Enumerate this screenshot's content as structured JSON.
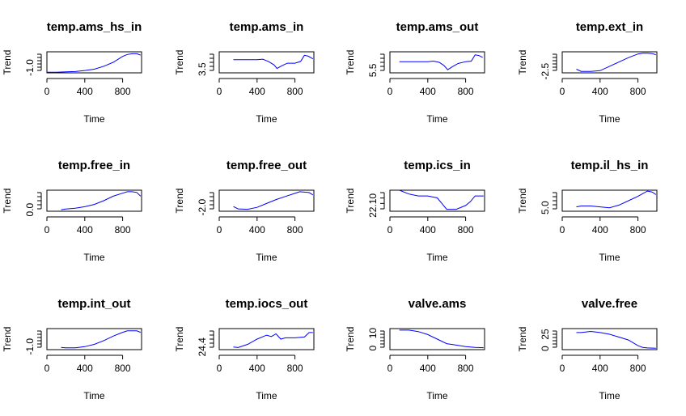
{
  "chart_data": [
    {
      "type": "line",
      "title": "temp.ams_hs_in",
      "xlabel": "Time",
      "ylabel": "Trend",
      "xlim": [
        0,
        1000
      ],
      "xticks": [
        0,
        400,
        800
      ],
      "ylim": [
        -1.4,
        0.2
      ],
      "yticks": [
        -1.0
      ],
      "ytick_labels": [
        "-1.0"
      ],
      "minor_ytick_count": 6,
      "x": [
        0,
        100,
        200,
        300,
        400,
        500,
        600,
        700,
        800,
        850,
        900,
        950,
        990
      ],
      "y": [
        -1.35,
        -1.35,
        -1.32,
        -1.3,
        -1.22,
        -1.12,
        -0.9,
        -0.6,
        -0.15,
        0.0,
        0.05,
        0.05,
        -0.05
      ]
    },
    {
      "type": "line",
      "title": "temp.ams_in",
      "xlabel": "Time",
      "ylabel": "Trend",
      "xlim": [
        0,
        1000
      ],
      "xticks": [
        0,
        400,
        800
      ],
      "ylim": [
        3.3,
        4.5
      ],
      "yticks": [
        3.5
      ],
      "ytick_labels": [
        "3.5"
      ],
      "minor_ytick_count": 5,
      "x": [
        150,
        250,
        400,
        460,
        520,
        580,
        610,
        660,
        720,
        800,
        860,
        900,
        940,
        990
      ],
      "y": [
        4.05,
        4.05,
        4.05,
        4.08,
        3.95,
        3.75,
        3.55,
        3.7,
        3.85,
        3.85,
        3.95,
        4.3,
        4.25,
        4.1
      ]
    },
    {
      "type": "line",
      "title": "temp.ams_out",
      "xlabel": "Time",
      "ylabel": "Trend",
      "xlim": [
        0,
        1000
      ],
      "xticks": [
        0,
        400,
        800
      ],
      "ylim": [
        5.3,
        7.0
      ],
      "yticks": [
        5.5
      ],
      "ytick_labels": [
        "5.5"
      ],
      "minor_ytick_count": 5,
      "x": [
        100,
        250,
        400,
        460,
        520,
        570,
        610,
        660,
        720,
        800,
        860,
        900,
        940,
        980
      ],
      "y": [
        6.2,
        6.2,
        6.2,
        6.25,
        6.15,
        5.9,
        5.55,
        5.8,
        6.05,
        6.2,
        6.25,
        6.75,
        6.7,
        6.55
      ]
    },
    {
      "type": "line",
      "title": "temp.ext_in",
      "xlabel": "Time",
      "ylabel": "Trend",
      "xlim": [
        0,
        1000
      ],
      "xticks": [
        0,
        400,
        800
      ],
      "ylim": [
        -2.7,
        0.2
      ],
      "yticks": [
        -2.5
      ],
      "ytick_labels": [
        "-2.5"
      ],
      "minor_ytick_count": 6,
      "x": [
        150,
        200,
        300,
        400,
        500,
        600,
        700,
        800,
        850,
        900,
        950,
        990
      ],
      "y": [
        -2.2,
        -2.5,
        -2.5,
        -2.4,
        -1.8,
        -1.2,
        -0.6,
        -0.1,
        0.0,
        0.0,
        -0.05,
        -0.2
      ]
    },
    {
      "type": "line",
      "title": "temp.free_in",
      "xlabel": "Time",
      "ylabel": "Trend",
      "xlim": [
        0,
        1000
      ],
      "xticks": [
        0,
        400,
        800
      ],
      "ylim": [
        -0.2,
        2.6
      ],
      "yticks": [
        0.0
      ],
      "ytick_labels": [
        "0.0"
      ],
      "minor_ytick_count": 5,
      "x": [
        150,
        200,
        300,
        400,
        500,
        600,
        700,
        800,
        850,
        900,
        950,
        990
      ],
      "y": [
        0.0,
        0.1,
        0.2,
        0.4,
        0.7,
        1.2,
        1.8,
        2.2,
        2.4,
        2.4,
        2.3,
        1.8
      ]
    },
    {
      "type": "line",
      "title": "temp.free_out",
      "xlabel": "Time",
      "ylabel": "Trend",
      "xlim": [
        0,
        1000
      ],
      "xticks": [
        0,
        400,
        800
      ],
      "ylim": [
        -2.5,
        0.2
      ],
      "yticks": [
        -2.0
      ],
      "ytick_labels": [
        "-2.0"
      ],
      "minor_ytick_count": 5,
      "x": [
        150,
        200,
        300,
        400,
        500,
        600,
        700,
        800,
        850,
        900,
        950,
        990
      ],
      "y": [
        -1.9,
        -2.2,
        -2.25,
        -2.0,
        -1.5,
        -1.0,
        -0.6,
        -0.2,
        0.0,
        -0.05,
        -0.1,
        -0.4
      ]
    },
    {
      "type": "line",
      "title": "temp.ics_in",
      "xlabel": "Time",
      "ylabel": "Trend",
      "xlim": [
        0,
        1000
      ],
      "xticks": [
        0,
        400,
        800
      ],
      "ylim": [
        22.07,
        22.18
      ],
      "yticks": [
        22.1
      ],
      "ytick_labels": [
        "22.10"
      ],
      "minor_ytick_count": 4,
      "x": [
        100,
        200,
        300,
        400,
        500,
        600,
        700,
        800,
        850,
        900,
        950,
        990
      ],
      "y": [
        22.18,
        22.16,
        22.15,
        22.15,
        22.14,
        22.08,
        22.08,
        22.1,
        22.12,
        22.15,
        22.15,
        22.15
      ]
    },
    {
      "type": "line",
      "title": "temp.il_hs_in",
      "xlabel": "Time",
      "ylabel": "Trend",
      "xlim": [
        0,
        1000
      ],
      "xticks": [
        0,
        400,
        800
      ],
      "ylim": [
        4.6,
        7.0
      ],
      "yticks": [
        5.0
      ],
      "ytick_labels": [
        "5.0"
      ],
      "minor_ytick_count": 5,
      "x": [
        150,
        200,
        300,
        400,
        500,
        600,
        700,
        800,
        850,
        900,
        950,
        990
      ],
      "y": [
        5.1,
        5.2,
        5.2,
        5.1,
        5.0,
        5.3,
        5.8,
        6.3,
        6.6,
        6.9,
        6.8,
        6.5
      ]
    },
    {
      "type": "line",
      "title": "temp.int_out",
      "xlabel": "Time",
      "ylabel": "Trend",
      "xlim": [
        0,
        1000
      ],
      "xticks": [
        0,
        400,
        800
      ],
      "ylim": [
        -1.2,
        0.2
      ],
      "yticks": [
        -1.0
      ],
      "ytick_labels": [
        "-1.0"
      ],
      "minor_ytick_count": 6,
      "x": [
        150,
        200,
        300,
        400,
        500,
        600,
        700,
        800,
        850,
        900,
        950,
        990
      ],
      "y": [
        -1.05,
        -1.08,
        -1.08,
        -1.0,
        -0.85,
        -0.6,
        -0.3,
        -0.05,
        0.05,
        0.05,
        0.05,
        -0.05
      ]
    },
    {
      "type": "line",
      "title": "temp.iocs_out",
      "xlabel": "Time",
      "ylabel": "Trend",
      "xlim": [
        0,
        1000
      ],
      "xticks": [
        0,
        400,
        800
      ],
      "ylim": [
        24.3,
        25.1
      ],
      "yticks": [
        24.4
      ],
      "ytick_labels": [
        "24.4"
      ],
      "minor_ytick_count": 5,
      "x": [
        150,
        200,
        300,
        400,
        500,
        550,
        600,
        650,
        700,
        800,
        900,
        950,
        990
      ],
      "y": [
        24.4,
        24.38,
        24.5,
        24.7,
        24.85,
        24.8,
        24.9,
        24.7,
        24.75,
        24.75,
        24.78,
        24.95,
        24.95
      ]
    },
    {
      "type": "line",
      "title": "valve.ams",
      "xlabel": "Time",
      "ylabel": "Trend",
      "xlim": [
        0,
        1000
      ],
      "xticks": [
        0,
        400,
        800
      ],
      "ylim": [
        -1,
        13
      ],
      "yticks": [
        0,
        10
      ],
      "ytick_labels": [
        "0",
        "10"
      ],
      "minor_ytick_count": 6,
      "x": [
        100,
        200,
        300,
        400,
        500,
        600,
        700,
        800,
        900,
        990
      ],
      "y": [
        12,
        12,
        11,
        9,
        6,
        3,
        2,
        1,
        0.5,
        0.3
      ]
    },
    {
      "type": "line",
      "title": "valve.free",
      "xlabel": "Time",
      "ylabel": "Trend",
      "xlim": [
        0,
        1000
      ],
      "xticks": [
        0,
        400,
        800
      ],
      "ylim": [
        -2,
        35
      ],
      "yticks": [
        0,
        25
      ],
      "ytick_labels": [
        "0",
        "25"
      ],
      "minor_ytick_count": 6,
      "x": [
        150,
        200,
        300,
        400,
        500,
        600,
        700,
        800,
        850,
        900,
        990
      ],
      "y": [
        28,
        28,
        30,
        28,
        25,
        20,
        15,
        5,
        2,
        1,
        0.5
      ]
    }
  ]
}
